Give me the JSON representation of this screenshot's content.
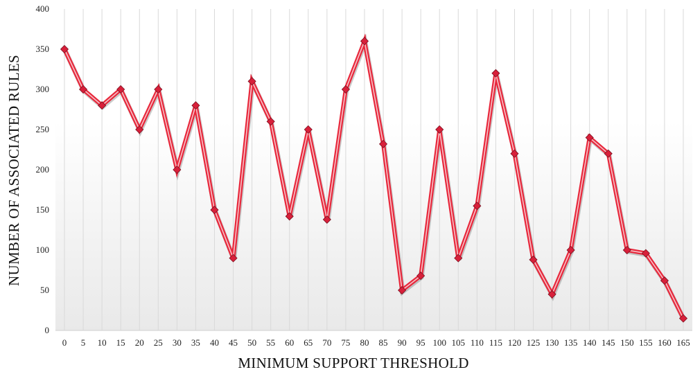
{
  "chart_data": {
    "type": "line",
    "title": "",
    "xlabel": "MINIMUM SUPPORT THRESHOLD",
    "ylabel": "NUMBER OF ASSOCIATED RULES",
    "ylim": [
      0,
      400
    ],
    "yticks": [
      0,
      50,
      100,
      150,
      200,
      250,
      300,
      350,
      400
    ],
    "grid": "vertical",
    "legend": "none",
    "x": [
      0,
      5,
      10,
      15,
      20,
      25,
      30,
      35,
      40,
      45,
      50,
      55,
      60,
      65,
      70,
      75,
      80,
      85,
      90,
      95,
      100,
      105,
      110,
      115,
      120,
      125,
      130,
      135,
      140,
      145,
      150,
      155,
      160,
      165
    ],
    "series": [
      {
        "name": "",
        "values": [
          350,
          300,
          280,
          300,
          250,
          300,
          200,
          280,
          150,
          90,
          310,
          260,
          142,
          250,
          138,
          300,
          360,
          232,
          50,
          68,
          250,
          90,
          155,
          320,
          220,
          88,
          45,
          100,
          240,
          220,
          100,
          96,
          62,
          15
        ]
      }
    ],
    "colors": {
      "line": "#e8283c",
      "line_core": "#f6c2c8",
      "marker": "#d8203a",
      "grid": "#d9d9d9",
      "background_bottom": "#ececec"
    }
  }
}
